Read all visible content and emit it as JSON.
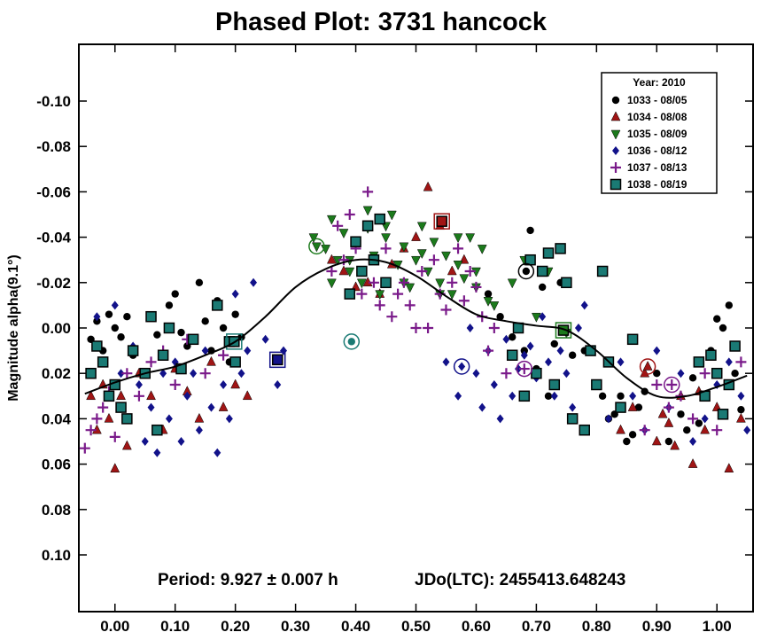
{
  "chart_data": {
    "type": "scatter",
    "title": "Phased Plot: 3731 hancock",
    "xlabel": "",
    "ylabel": "Magnitude alpha(9.1°)",
    "xlim": [
      -0.06,
      1.06
    ],
    "ylim": [
      -0.125,
      0.125
    ],
    "y_inverted": true,
    "grid": false,
    "legend_position": "top-right",
    "x_ticks": [
      0.0,
      0.1,
      0.2,
      0.3,
      0.4,
      0.5,
      0.6,
      0.7,
      0.8,
      0.9,
      1.0
    ],
    "x_tick_labels": [
      "0.00",
      "0.10",
      "0.20",
      "0.30",
      "0.40",
      "0.50",
      "0.60",
      "0.70",
      "0.80",
      "0.90",
      "1.00"
    ],
    "y_ticks": [
      -0.1,
      -0.08,
      -0.06,
      -0.04,
      -0.02,
      0.0,
      0.02,
      0.04,
      0.06,
      0.08,
      0.1
    ],
    "y_tick_labels": [
      "-0.10",
      "-0.08",
      "-0.06",
      "-0.04",
      "-0.02",
      "0.00",
      "0.02",
      "0.04",
      "0.06",
      "0.08",
      "0.10"
    ],
    "legend_title": "Year: 2010",
    "annotations": {
      "period": "Period: 9.927 ± 0.007 h",
      "jdo": "JDo(LTC): 2455413.648243"
    },
    "series": [
      {
        "name": "1033 - 08/05",
        "marker": "circle",
        "color": "#000000",
        "x": [
          -0.04,
          -0.03,
          -0.02,
          -0.01,
          0.0,
          0.01,
          0.02,
          0.03,
          0.05,
          0.07,
          0.09,
          0.1,
          0.11,
          0.12,
          0.14,
          0.15,
          0.16,
          0.17,
          0.18,
          0.19,
          0.2,
          0.21,
          0.62,
          0.64,
          0.66,
          0.68,
          0.69,
          0.7,
          0.71,
          0.72,
          0.73,
          0.74,
          0.76,
          0.78,
          0.8,
          0.82,
          0.84,
          0.86,
          0.88,
          0.9,
          0.92,
          0.94,
          0.96,
          0.98,
          0.99,
          1.0,
          1.01,
          1.02,
          1.03,
          1.04,
          0.97,
          0.95,
          0.87,
          0.85,
          0.83,
          0.81
        ],
        "y": [
          0.005,
          -0.003,
          0.01,
          -0.006,
          0.0,
          0.004,
          -0.005,
          0.012,
          0.02,
          0.003,
          -0.01,
          -0.015,
          0.002,
          0.008,
          -0.02,
          -0.003,
          0.01,
          -0.012,
          0.0,
          0.015,
          -0.006,
          0.004,
          -0.015,
          -0.005,
          0.004,
          0.01,
          -0.043,
          0.018,
          -0.018,
          0.03,
          0.007,
          -0.02,
          0.012,
          0.01,
          0.025,
          0.04,
          0.03,
          0.047,
          0.028,
          0.02,
          0.05,
          0.038,
          0.022,
          0.03,
          0.01,
          -0.004,
          0.0,
          -0.01,
          0.02,
          0.036,
          0.042,
          0.045,
          0.035,
          0.05,
          0.038,
          0.03
        ]
      },
      {
        "name": "1034 - 08/08",
        "marker": "triangle-up",
        "color": "#a01515",
        "x": [
          -0.04,
          -0.03,
          -0.02,
          -0.01,
          0.0,
          0.01,
          0.02,
          0.04,
          0.06,
          0.08,
          0.1,
          0.12,
          0.14,
          0.16,
          0.18,
          0.2,
          0.22,
          0.36,
          0.38,
          0.4,
          0.42,
          0.44,
          0.46,
          0.48,
          0.5,
          0.52,
          0.54,
          0.56,
          0.58,
          0.84,
          0.86,
          0.88,
          0.9,
          0.92,
          0.94,
          0.96,
          0.98,
          1.0,
          1.02,
          1.04,
          0.91,
          0.93,
          0.97
        ],
        "y": [
          0.03,
          0.045,
          0.025,
          0.04,
          0.062,
          0.03,
          0.052,
          0.02,
          0.03,
          0.045,
          0.018,
          0.028,
          0.04,
          0.015,
          0.035,
          0.025,
          0.03,
          -0.03,
          -0.025,
          -0.018,
          -0.02,
          -0.015,
          -0.028,
          -0.035,
          -0.04,
          -0.062,
          -0.045,
          -0.025,
          -0.03,
          0.045,
          0.035,
          0.02,
          0.05,
          0.042,
          0.03,
          0.06,
          0.045,
          0.035,
          0.062,
          0.04,
          0.038,
          0.052,
          0.028
        ]
      },
      {
        "name": "1035 - 08/09",
        "marker": "triangle-down",
        "color": "#1c7a1c",
        "x": [
          0.33,
          0.35,
          0.36,
          0.37,
          0.38,
          0.39,
          0.4,
          0.41,
          0.42,
          0.43,
          0.44,
          0.45,
          0.46,
          0.47,
          0.48,
          0.49,
          0.5,
          0.51,
          0.52,
          0.53,
          0.54,
          0.55,
          0.56,
          0.57,
          0.58,
          0.59,
          0.6,
          0.61,
          0.62,
          0.36,
          0.39,
          0.42,
          0.45,
          0.48,
          0.51,
          0.54,
          0.57,
          0.6,
          0.63,
          0.66,
          0.7,
          0.75,
          0.72,
          0.68
        ],
        "y": [
          -0.04,
          -0.035,
          -0.048,
          -0.03,
          -0.042,
          -0.025,
          -0.038,
          -0.02,
          -0.044,
          -0.032,
          -0.015,
          -0.04,
          -0.05,
          -0.028,
          -0.036,
          -0.018,
          -0.03,
          -0.045,
          -0.025,
          -0.038,
          -0.02,
          -0.032,
          -0.015,
          -0.028,
          -0.022,
          -0.04,
          -0.018,
          -0.035,
          -0.012,
          -0.02,
          -0.03,
          -0.052,
          -0.045,
          -0.02,
          -0.033,
          -0.015,
          -0.04,
          -0.025,
          -0.01,
          -0.02,
          -0.005,
          0.002,
          -0.025,
          -0.03
        ]
      },
      {
        "name": "1036 - 08/12",
        "marker": "diamond",
        "color": "#12128a",
        "x": [
          -0.03,
          -0.02,
          -0.01,
          0.0,
          0.01,
          0.02,
          0.03,
          0.04,
          0.05,
          0.06,
          0.07,
          0.08,
          0.09,
          0.1,
          0.11,
          0.12,
          0.13,
          0.14,
          0.15,
          0.16,
          0.17,
          0.18,
          0.19,
          0.2,
          0.21,
          0.22,
          0.23,
          0.25,
          0.27,
          0.28,
          0.55,
          0.57,
          0.59,
          0.6,
          0.61,
          0.62,
          0.63,
          0.64,
          0.65,
          0.66,
          0.67,
          0.68,
          0.69,
          0.7,
          0.71,
          0.72,
          0.73,
          0.74,
          0.75,
          0.76,
          0.77,
          0.78,
          0.8,
          0.82,
          0.84,
          0.86,
          0.88,
          0.9,
          0.92,
          0.94,
          0.96,
          0.98,
          1.0,
          1.02,
          1.04,
          1.05
        ],
        "y": [
          -0.005,
          0.015,
          0.03,
          -0.01,
          0.02,
          0.04,
          0.008,
          0.025,
          0.05,
          0.035,
          0.055,
          0.02,
          0.04,
          0.015,
          0.05,
          0.03,
          0.02,
          0.045,
          0.01,
          0.035,
          0.055,
          0.025,
          0.04,
          -0.015,
          0.02,
          0.01,
          -0.02,
          0.005,
          0.025,
          0.01,
          0.015,
          0.03,
          0.0,
          0.02,
          0.035,
          0.01,
          0.025,
          0.04,
          0.005,
          0.03,
          0.018,
          0.012,
          0.008,
          0.022,
          -0.005,
          0.015,
          0.03,
          0.01,
          0.02,
          0.035,
          0.0,
          -0.01,
          0.025,
          0.04,
          0.015,
          0.03,
          0.045,
          0.01,
          0.035,
          0.02,
          0.05,
          0.04,
          0.025,
          0.015,
          0.03,
          0.045
        ]
      },
      {
        "name": "1037 - 08/13",
        "marker": "plus",
        "color": "#7a1a8a",
        "x": [
          -0.05,
          -0.04,
          -0.03,
          -0.02,
          -0.01,
          0.0,
          0.02,
          0.04,
          0.06,
          0.08,
          0.1,
          0.12,
          0.15,
          0.18,
          0.36,
          0.37,
          0.38,
          0.39,
          0.4,
          0.41,
          0.42,
          0.43,
          0.44,
          0.45,
          0.46,
          0.47,
          0.48,
          0.49,
          0.5,
          0.51,
          0.52,
          0.53,
          0.54,
          0.55,
          0.56,
          0.57,
          0.58,
          0.59,
          0.6,
          0.61,
          0.62,
          0.63,
          0.65,
          0.88,
          0.9,
          0.92,
          0.94,
          0.96,
          0.98,
          1.0,
          1.02,
          1.04
        ],
        "y": [
          0.053,
          0.045,
          0.04,
          0.035,
          0.028,
          0.048,
          0.02,
          0.03,
          0.015,
          0.01,
          0.025,
          0.005,
          0.02,
          0.012,
          -0.025,
          -0.045,
          -0.03,
          -0.05,
          -0.035,
          -0.015,
          -0.06,
          -0.02,
          -0.01,
          -0.035,
          -0.005,
          -0.015,
          -0.02,
          -0.01,
          0.0,
          -0.025,
          0.0,
          -0.03,
          -0.015,
          -0.008,
          -0.02,
          -0.035,
          -0.012,
          -0.025,
          -0.018,
          -0.005,
          0.01,
          0.0,
          0.02,
          0.045,
          0.025,
          0.035,
          0.03,
          0.04,
          0.02,
          0.045,
          0.025,
          0.015
        ]
      },
      {
        "name": "1038 - 08/19",
        "marker": "square",
        "color": "#1a7a74",
        "x": [
          -0.04,
          -0.03,
          -0.02,
          -0.01,
          0.0,
          0.01,
          0.02,
          0.03,
          0.05,
          0.06,
          0.07,
          0.08,
          0.09,
          0.11,
          0.13,
          0.17,
          0.19,
          0.2,
          0.39,
          0.4,
          0.41,
          0.42,
          0.43,
          0.44,
          0.45,
          0.66,
          0.67,
          0.68,
          0.69,
          0.7,
          0.71,
          0.72,
          0.73,
          0.74,
          0.75,
          0.76,
          0.78,
          0.79,
          0.8,
          0.81,
          0.82,
          0.84,
          0.86,
          0.97,
          0.98,
          0.99,
          1.0,
          1.01,
          1.02,
          1.03
        ],
        "y": [
          0.02,
          0.008,
          0.015,
          0.03,
          0.025,
          0.035,
          0.04,
          0.01,
          0.02,
          -0.005,
          0.045,
          0.012,
          0.0,
          0.018,
          0.005,
          -0.01,
          0.006,
          0.015,
          -0.015,
          -0.038,
          -0.025,
          -0.045,
          -0.03,
          -0.048,
          -0.02,
          0.012,
          0.0,
          0.03,
          -0.03,
          0.02,
          -0.025,
          -0.033,
          0.025,
          -0.035,
          -0.02,
          0.04,
          0.045,
          0.01,
          0.025,
          -0.025,
          0.015,
          0.035,
          0.005,
          0.015,
          0.03,
          0.012,
          0.02,
          0.038,
          0.025,
          0.008
        ]
      }
    ],
    "highlighted_points": [
      {
        "marker": "triangle-down",
        "color": "#1c7a1c",
        "x": 0.335,
        "y": -0.036
      },
      {
        "marker": "square",
        "color": "#a01515",
        "x": 0.543,
        "y": -0.047
      },
      {
        "marker": "circle",
        "color": "#000000",
        "x": 0.683,
        "y": -0.025
      },
      {
        "marker": "diamond",
        "color": "#12128a",
        "x": 0.576,
        "y": 0.017
      },
      {
        "marker": "plus",
        "color": "#7a1a8a",
        "x": 0.68,
        "y": 0.018
      },
      {
        "marker": "square",
        "color": "#1a7a74",
        "x": 0.198,
        "y": 0.006
      },
      {
        "marker": "square",
        "color": "#12128a",
        "x": 0.27,
        "y": 0.014
      },
      {
        "marker": "circle",
        "color": "#1a7a74",
        "x": 0.393,
        "y": 0.006
      },
      {
        "marker": "triangle-up",
        "color": "#a01515",
        "x": 0.885,
        "y": 0.017
      },
      {
        "marker": "plus",
        "color": "#7a1a8a",
        "x": 0.925,
        "y": 0.025
      },
      {
        "marker": "square",
        "color": "#1c7a1c",
        "x": 0.745,
        "y": 0.001
      }
    ],
    "fit_curve": {
      "color": "#000000",
      "x": [
        -0.05,
        0.0,
        0.05,
        0.1,
        0.15,
        0.2,
        0.25,
        0.3,
        0.35,
        0.4,
        0.45,
        0.5,
        0.55,
        0.6,
        0.65,
        0.7,
        0.75,
        0.8,
        0.85,
        0.9,
        0.95,
        1.0,
        1.05
      ],
      "y": [
        0.029,
        0.024,
        0.02,
        0.017,
        0.012,
        0.006,
        -0.005,
        -0.018,
        -0.026,
        -0.03,
        -0.029,
        -0.023,
        -0.014,
        -0.006,
        -0.003,
        -0.001,
        0.001,
        0.01,
        0.022,
        0.03,
        0.03,
        0.026,
        0.021
      ]
    }
  }
}
